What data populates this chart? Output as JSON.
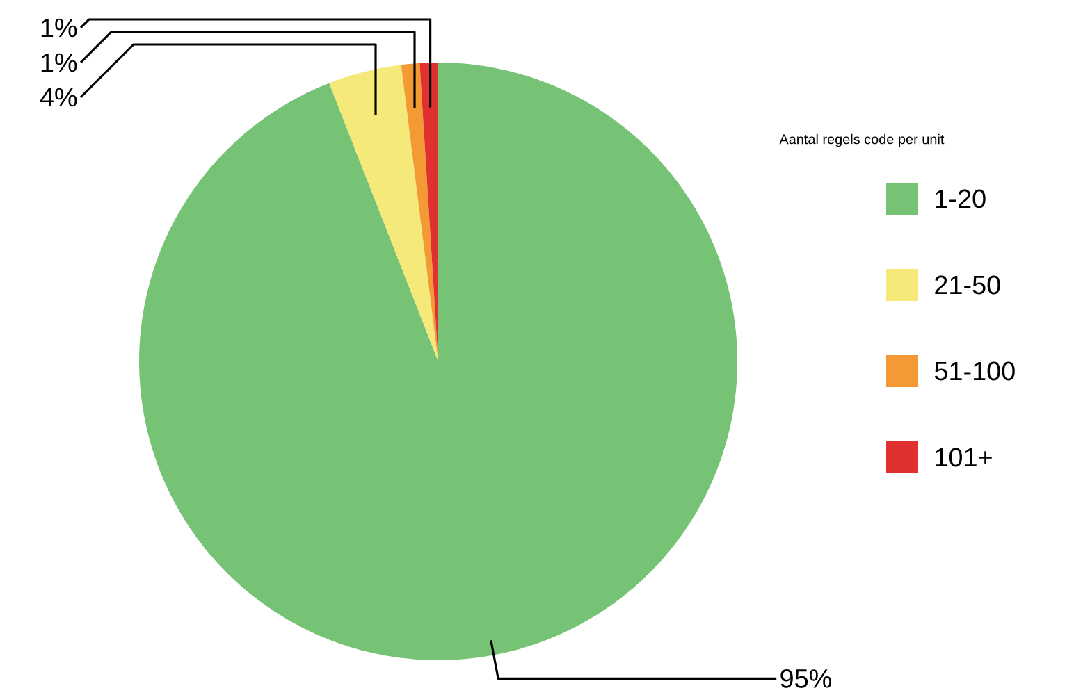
{
  "chart_data": {
    "type": "pie",
    "categories": [
      "1-20",
      "21-50",
      "51-100",
      "101+"
    ],
    "values": [
      95,
      4,
      1,
      1
    ],
    "colors": [
      "#77c375",
      "#f5e97a",
      "#f39a35",
      "#e03030"
    ],
    "value_labels": [
      "95%",
      "4%",
      "1%",
      "1%"
    ],
    "legend_title": "Aantal regels code per unit",
    "legend": "right"
  }
}
